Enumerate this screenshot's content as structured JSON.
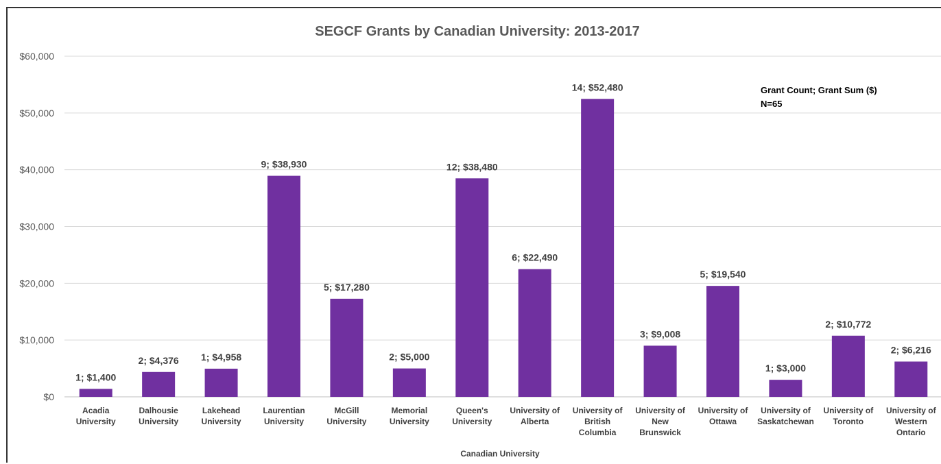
{
  "chart_data": {
    "type": "bar",
    "title": "SEGCF Grants by Canadian University: 2013-2017",
    "xlabel": "Canadian University",
    "ylabel": "",
    "ylim": [
      0,
      60000
    ],
    "yticks": [
      "$0",
      "$10,000",
      "$20,000",
      "$30,000",
      "$40,000",
      "$50,000",
      "$60,000"
    ],
    "grid": true,
    "bar_color": "#7030a0",
    "annotation": [
      "Grant Count; Grant Sum ($)",
      "N=65"
    ],
    "categories": [
      [
        "Acadia",
        "University"
      ],
      [
        "Dalhousie",
        "University"
      ],
      [
        "Lakehead",
        "University"
      ],
      [
        "Laurentian",
        "University"
      ],
      [
        "McGill",
        "University"
      ],
      [
        "Memorial",
        "University"
      ],
      [
        "Queen's",
        "University"
      ],
      [
        "University of",
        "Alberta"
      ],
      [
        "University of",
        "British",
        "Columbia"
      ],
      [
        "University of",
        "New",
        "Brunswick"
      ],
      [
        "University of",
        "Ottawa"
      ],
      [
        "University of",
        "Saskatchewan"
      ],
      [
        "University of",
        "Toronto"
      ],
      [
        "University of",
        "Western",
        "Ontario"
      ]
    ],
    "values": [
      1400,
      4376,
      4958,
      38930,
      17280,
      5000,
      38480,
      22490,
      52480,
      9008,
      19540,
      3000,
      10772,
      6216
    ],
    "counts": [
      1,
      2,
      1,
      9,
      5,
      2,
      12,
      6,
      14,
      3,
      5,
      1,
      2,
      2
    ],
    "data_labels": [
      "1; $1,400",
      "2; $4,376",
      "1; $4,958",
      "9; $38,930",
      "5; $17,280",
      "2; $5,000",
      "12; $38,480",
      "6; $22,490",
      "14; $52,480",
      "3; $9,008",
      "5; $19,540",
      "1; $3,000",
      "2; $10,772",
      "2; $6,216"
    ]
  }
}
